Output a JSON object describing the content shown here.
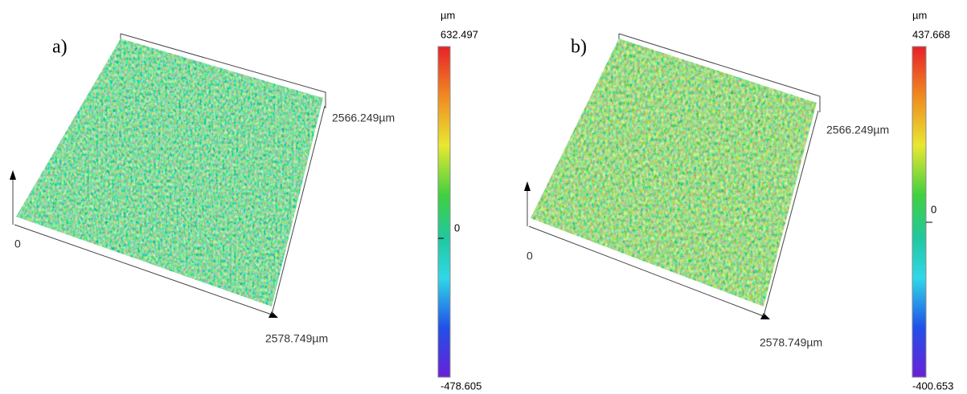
{
  "panels": [
    {
      "label": "a)",
      "y_extent": "2566.249µm",
      "origin": "0",
      "x_extent": "2578.749µm",
      "colorbar": {
        "unit": "µm",
        "max": "632.497",
        "zero": "0",
        "min": "-478.605"
      }
    },
    {
      "label": "b)",
      "y_extent": "2566.249µm",
      "origin": "0",
      "x_extent": "2578.749µm",
      "colorbar": {
        "unit": "µm",
        "max": "437.668",
        "zero": "0",
        "min": "-400.653"
      }
    }
  ]
}
